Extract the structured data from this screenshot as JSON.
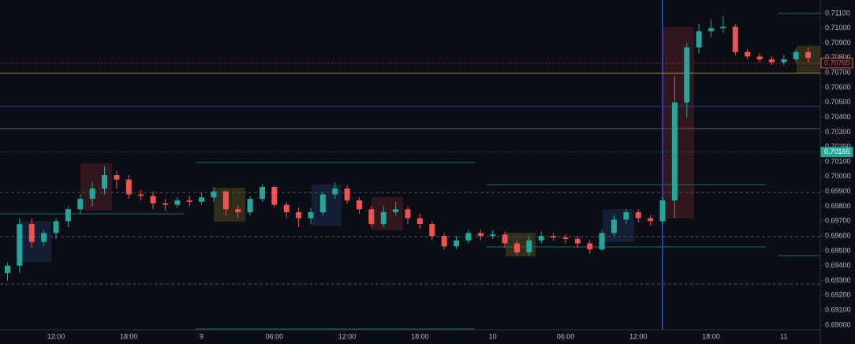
{
  "chart_data": {
    "type": "candlestick",
    "categories": [
      null,
      null,
      null,
      null,
      "12:00",
      null,
      null,
      null,
      null,
      null,
      "18:00",
      null,
      null,
      null,
      null,
      null,
      "9",
      null,
      null,
      null,
      null,
      null,
      "06:00",
      null,
      null,
      null,
      null,
      null,
      "12:00",
      null,
      null,
      null,
      null,
      null,
      "18:00",
      null,
      null,
      null,
      null,
      null,
      "10",
      null,
      null,
      null,
      null,
      null,
      "06:00",
      null,
      null,
      null,
      null,
      null,
      "12:00",
      null,
      null,
      null,
      null,
      null,
      "18:00",
      null,
      null,
      null,
      null,
      null,
      "11",
      null,
      null
    ],
    "open": [
      0.6935,
      0.694,
      0.6968,
      0.6956,
      0.6962,
      0.697,
      0.6978,
      0.6985,
      0.6992,
      0.7001,
      0.6998,
      0.6988,
      0.6987,
      0.6982,
      0.6981,
      0.6984,
      0.6983,
      0.6986,
      0.699,
      0.6978,
      0.6976,
      0.6985,
      0.6993,
      0.6981,
      0.6976,
      0.6972,
      0.6976,
      0.6988,
      0.6992,
      0.6984,
      0.6978,
      0.6968,
      0.6976,
      0.6978,
      0.6972,
      0.6968,
      0.696,
      0.6953,
      0.6957,
      0.6962,
      0.696,
      0.6961,
      0.6955,
      0.6949,
      0.6957,
      0.696,
      0.6959,
      0.6958,
      0.6955,
      0.6951,
      0.6962,
      0.6971,
      0.6976,
      0.6972,
      0.697,
      0.6984,
      0.705,
      0.7087,
      0.7098,
      0.71,
      0.7101,
      0.7084,
      0.7081,
      0.7079,
      0.7077,
      0.7079,
      0.7084
    ],
    "high": [
      0.6942,
      0.6972,
      0.6972,
      0.6964,
      0.6972,
      0.698,
      0.6988,
      0.6996,
      0.7007,
      0.7004,
      0.7001,
      0.6991,
      0.699,
      0.6985,
      0.6986,
      0.6987,
      0.6989,
      0.6993,
      0.6991,
      0.6981,
      0.6987,
      0.6995,
      0.6994,
      0.6983,
      0.6979,
      0.6979,
      0.699,
      0.6996,
      0.6994,
      0.6986,
      0.698,
      0.698,
      0.6983,
      0.698,
      0.6975,
      0.697,
      0.6962,
      0.696,
      0.6964,
      0.6964,
      0.6964,
      0.6963,
      0.6957,
      0.696,
      0.6963,
      0.6962,
      0.6961,
      0.696,
      0.6957,
      0.6964,
      0.6974,
      0.6978,
      0.6978,
      0.6974,
      0.6986,
      0.7068,
      0.709,
      0.7103,
      0.7106,
      0.7108,
      0.7103,
      0.7086,
      0.7083,
      0.7081,
      0.7082,
      0.7086,
      0.7087
    ],
    "low": [
      0.693,
      0.6935,
      0.6952,
      0.6953,
      0.6958,
      0.6966,
      0.6975,
      0.698,
      0.6988,
      0.6992,
      0.6985,
      0.6984,
      0.6978,
      0.6977,
      0.6979,
      0.698,
      0.6981,
      0.6983,
      0.6974,
      0.6972,
      0.6974,
      0.6983,
      0.6979,
      0.6972,
      0.6966,
      0.6968,
      0.6974,
      0.6985,
      0.6982,
      0.6975,
      0.6966,
      0.6966,
      0.6974,
      0.6968,
      0.6965,
      0.6957,
      0.6951,
      0.6951,
      0.6955,
      0.6957,
      0.6958,
      0.6952,
      0.6947,
      0.6947,
      0.6955,
      0.6957,
      0.6955,
      0.6952,
      0.6948,
      0.695,
      0.696,
      0.6968,
      0.6969,
      0.6967,
      0.6968,
      0.6972,
      0.704,
      0.7083,
      0.7094,
      0.7097,
      0.7082,
      0.7079,
      0.7077,
      0.7075,
      0.7075,
      0.7077,
      0.7077
    ],
    "close": [
      0.694,
      0.6968,
      0.6956,
      0.6962,
      0.697,
      0.6978,
      0.6985,
      0.6992,
      0.7001,
      0.6998,
      0.6988,
      0.6987,
      0.6982,
      0.6981,
      0.6984,
      0.6983,
      0.6986,
      0.699,
      0.6978,
      0.6976,
      0.6985,
      0.6993,
      0.6981,
      0.6976,
      0.6972,
      0.6976,
      0.6988,
      0.6992,
      0.6984,
      0.6978,
      0.6968,
      0.6976,
      0.6978,
      0.6972,
      0.6968,
      0.696,
      0.6953,
      0.6957,
      0.6962,
      0.696,
      0.6961,
      0.6955,
      0.6949,
      0.6957,
      0.696,
      0.6959,
      0.6958,
      0.6955,
      0.6951,
      0.6962,
      0.6971,
      0.6976,
      0.6972,
      0.697,
      0.6984,
      0.705,
      0.7087,
      0.7098,
      0.71,
      0.7101,
      0.7084,
      0.7081,
      0.7079,
      0.7077,
      0.7079,
      0.7084,
      0.708
    ],
    "up_color": "#26a69a",
    "down_color": "#ef5350",
    "ylim": [
      0.68968,
      0.7119
    ],
    "yticks": [
      {
        "value": 0.69,
        "label": "0.69000"
      },
      {
        "value": 0.691,
        "label": "0.69100"
      },
      {
        "value": 0.692,
        "label": "0.69200"
      },
      {
        "value": 0.693,
        "label": "0.69300"
      },
      {
        "value": 0.694,
        "label": "0.69400"
      },
      {
        "value": 0.695,
        "label": "0.69500"
      },
      {
        "value": 0.696,
        "label": "0.69600"
      },
      {
        "value": 0.697,
        "label": "0.69700"
      },
      {
        "value": 0.698,
        "label": "0.69800"
      },
      {
        "value": 0.699,
        "label": "0.69900"
      },
      {
        "value": 0.7,
        "label": "0.70000"
      },
      {
        "value": 0.701,
        "label": "0.70100"
      },
      {
        "value": 0.702,
        "label": "0.70200"
      },
      {
        "value": 0.703,
        "label": "0.70300"
      },
      {
        "value": 0.704,
        "label": "0.70400"
      },
      {
        "value": 0.705,
        "label": "0.70500"
      },
      {
        "value": 0.706,
        "label": "0.70600"
      },
      {
        "value": 0.707,
        "label": "0.70700"
      },
      {
        "value": 0.708,
        "label": "0.70800"
      },
      {
        "value": 0.709,
        "label": "0.70900"
      },
      {
        "value": 0.71,
        "label": "0.71000"
      },
      {
        "value": 0.711,
        "label": "0.71100"
      }
    ],
    "price_labels": [
      {
        "value": 0.70765,
        "label": "0.70765",
        "color": "#ef5350"
      },
      {
        "value": 0.70166,
        "label": "0.70166",
        "color": "#26a69a"
      }
    ],
    "levels": [
      {
        "value": 0.70696,
        "color": "#9a9a2e"
      },
      {
        "value": 0.70473,
        "color": "#2b3f9e"
      },
      {
        "value": 0.70324,
        "color": "#6b4a8a"
      },
      {
        "value": 0.69893,
        "color": "#4a4f5c",
        "dashed": true
      },
      {
        "value": 0.69595,
        "color": "#4a4f5c",
        "dashed": true
      },
      {
        "value": 0.69276,
        "color": "#4a4f5c",
        "dashed": true
      }
    ]
  }
}
